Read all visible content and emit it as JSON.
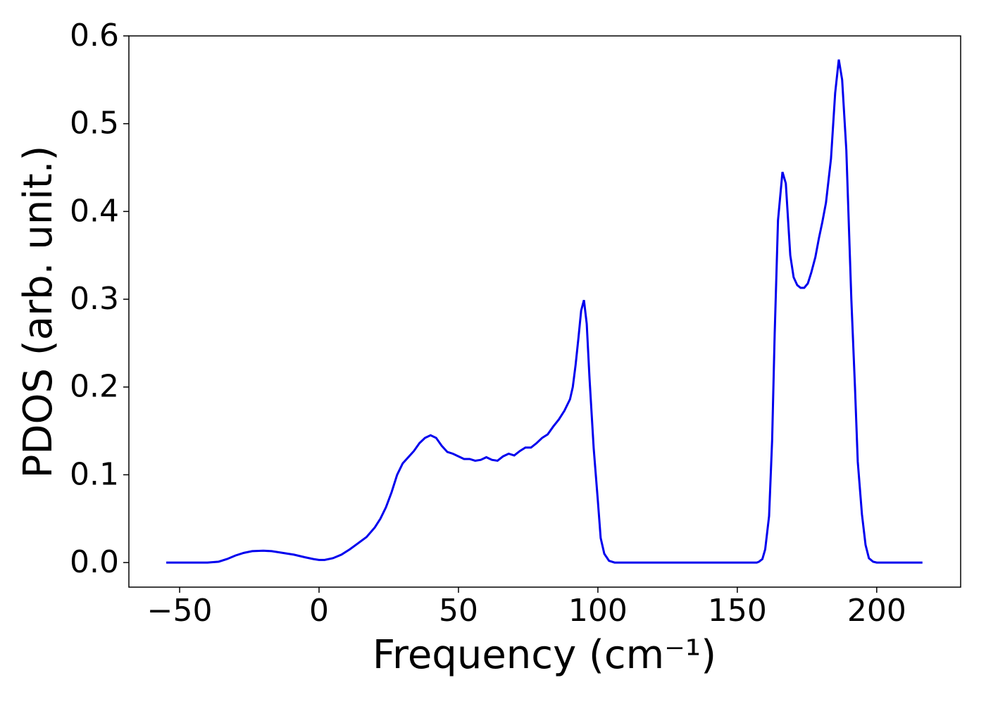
{
  "chart_data": {
    "type": "line",
    "xlabel": "Frequency (cm⁻¹)",
    "ylabel": "PDOS (arb. unit.)",
    "xlim": [
      -68.2,
      230.1
    ],
    "ylim": [
      -0.028,
      0.6
    ],
    "xticks": [
      {
        "value": -50,
        "label": "−50"
      },
      0,
      50,
      100,
      150,
      200
    ],
    "yticks": [
      {
        "value": 0,
        "label": "0.0"
      },
      0.1,
      0.2,
      0.3,
      0.4,
      0.5,
      0.6
    ],
    "x": [
      -54.8,
      -40,
      -36,
      -33,
      -30,
      -27,
      -24,
      -20,
      -17,
      -13,
      -9,
      -5,
      -2,
      0,
      2,
      5,
      8,
      11,
      14,
      17,
      20,
      22,
      24,
      26,
      28,
      30,
      32,
      34,
      36,
      38,
      40,
      42,
      44,
      46,
      48,
      50,
      52,
      54,
      56,
      58,
      60,
      62,
      64,
      66,
      68,
      70,
      72,
      74,
      76,
      78,
      80,
      82,
      84,
      86,
      88,
      90,
      91,
      92,
      93,
      94,
      95,
      96,
      97,
      98.5,
      100,
      101,
      102.3,
      104,
      106,
      130,
      157,
      157.8,
      159,
      160,
      161.4,
      162.5,
      163.4,
      164.6,
      166.2,
      167.4,
      169,
      170.2,
      171.5,
      172.7,
      174,
      175.3,
      176.5,
      178,
      179.3,
      180.5,
      181.8,
      183.6,
      185.1,
      186.4,
      187.6,
      189.1,
      190.9,
      192.2,
      193.2,
      194.7,
      196,
      197.2,
      198.7,
      200,
      216.4
    ],
    "series": [
      {
        "name": "PDOS",
        "color": "#0000ee",
        "values": [
          0,
          0,
          0.001,
          0.004,
          0.008,
          0.011,
          0.013,
          0.0135,
          0.013,
          0.011,
          0.009,
          0.006,
          0.004,
          0.003,
          0.003,
          0.005,
          0.009,
          0.015,
          0.022,
          0.029,
          0.04,
          0.05,
          0.063,
          0.08,
          0.1,
          0.113,
          0.12,
          0.127,
          0.136,
          0.142,
          0.145,
          0.142,
          0.133,
          0.126,
          0.124,
          0.121,
          0.118,
          0.118,
          0.116,
          0.117,
          0.12,
          0.117,
          0.116,
          0.121,
          0.124,
          0.122,
          0.127,
          0.131,
          0.131,
          0.136,
          0.142,
          0.146,
          0.155,
          0.163,
          0.173,
          0.186,
          0.2,
          0.225,
          0.255,
          0.287,
          0.299,
          0.272,
          0.21,
          0.13,
          0.07,
          0.028,
          0.01,
          0.002,
          0,
          0,
          0,
          0.001,
          0.004,
          0.015,
          0.053,
          0.14,
          0.26,
          0.39,
          0.445,
          0.432,
          0.35,
          0.325,
          0.316,
          0.313,
          0.313,
          0.318,
          0.33,
          0.348,
          0.37,
          0.388,
          0.41,
          0.46,
          0.535,
          0.573,
          0.55,
          0.47,
          0.3,
          0.2,
          0.115,
          0.055,
          0.02,
          0.005,
          0.001,
          0,
          0
        ]
      }
    ]
  }
}
